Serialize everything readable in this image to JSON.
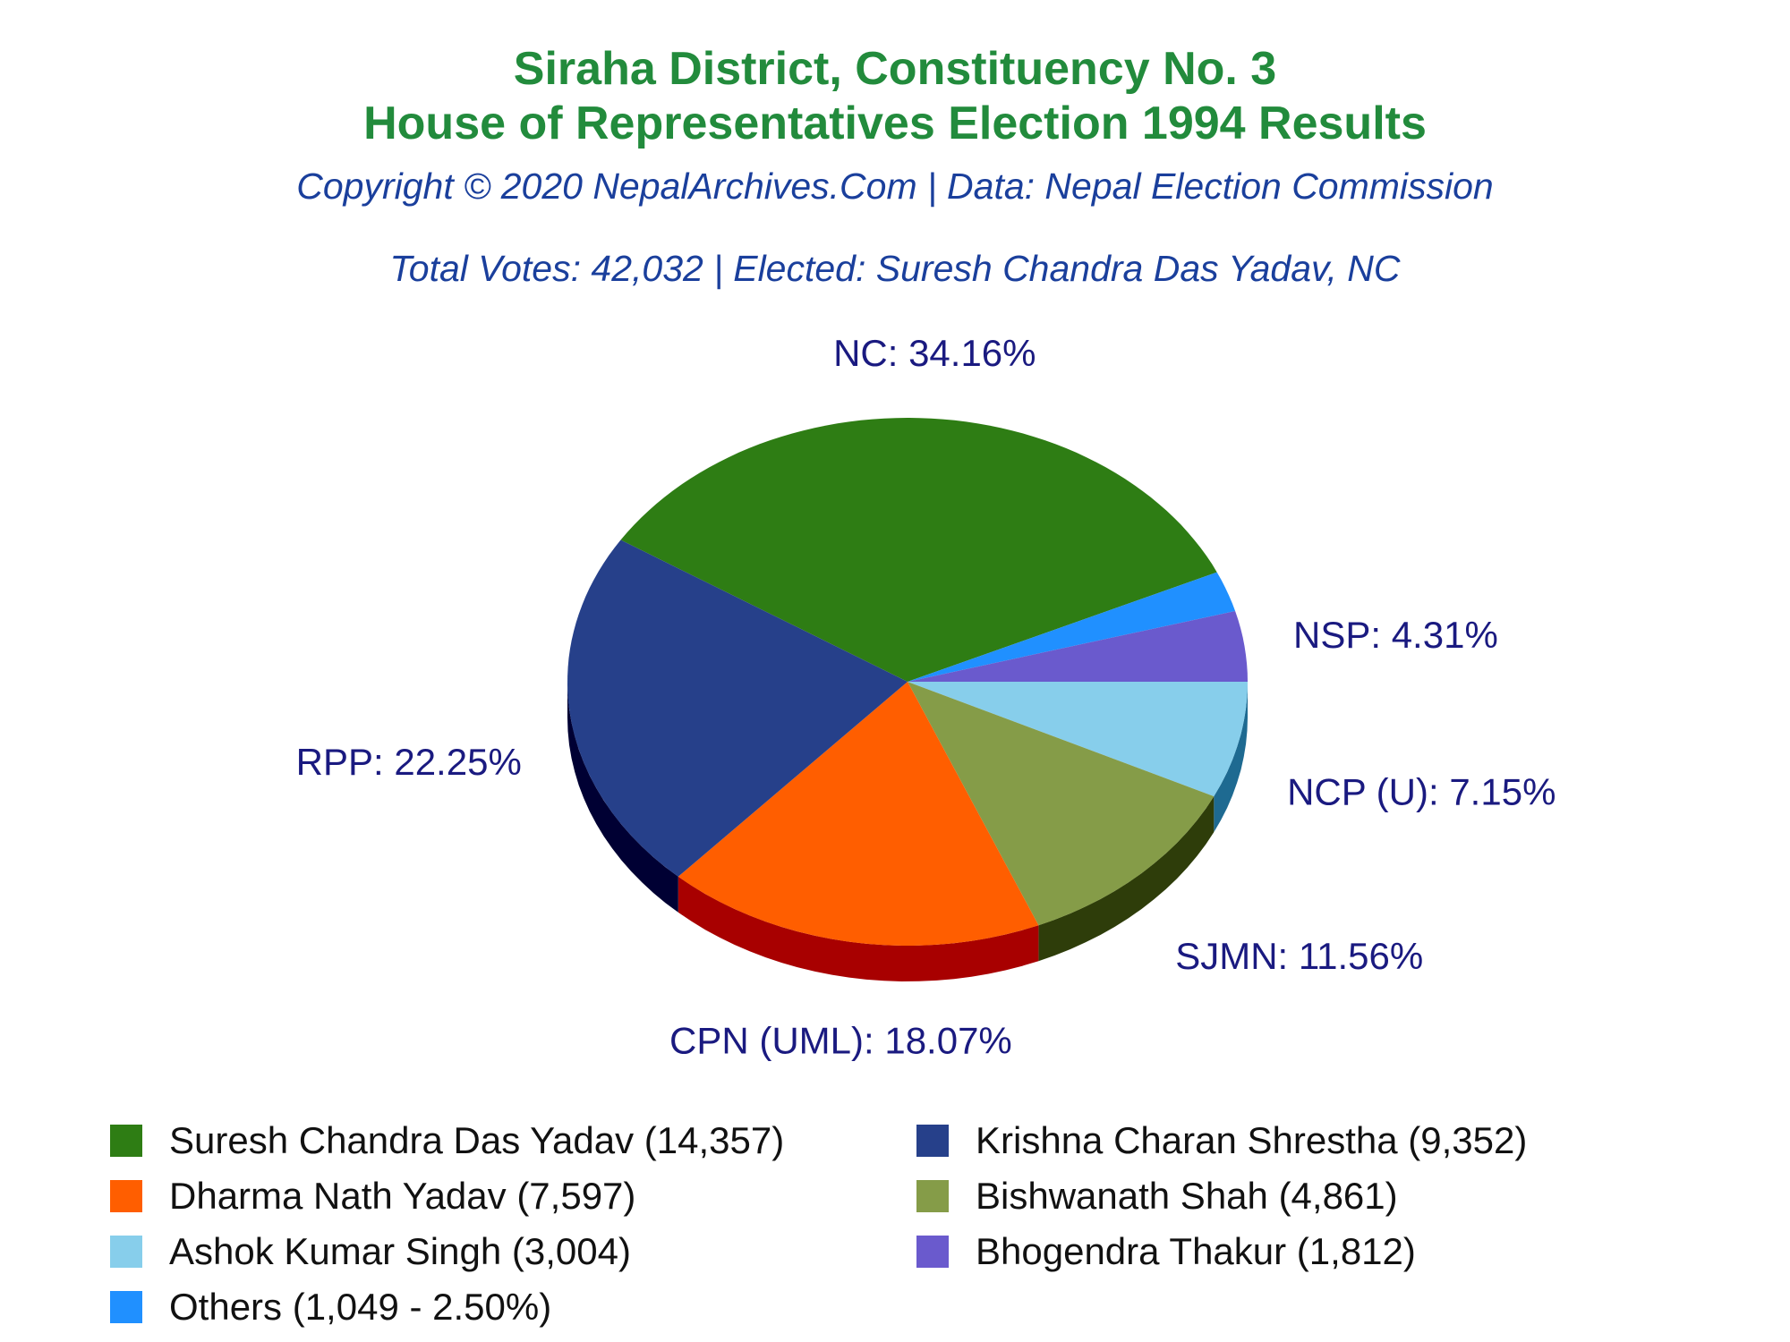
{
  "chart_data": {
    "type": "pie",
    "title": "Siraha District, Constituency No. 3",
    "title_line2": "House of Representatives Election 1994 Results",
    "subtitle": "Copyright © 2020 NepalArchives.Com | Data: Nepal Election Commission",
    "summary": "Total Votes: 42,032 | Elected: Suresh Chandra Das Yadav, NC",
    "slices": [
      {
        "party": "NC",
        "value": 34.16,
        "label": "NC: 34.16%",
        "color": "#2e7d14",
        "side_color": "#1c5a0a"
      },
      {
        "party": "Others",
        "value": 2.5,
        "label": "",
        "color": "#2090ff",
        "side_color": "#1565c0"
      },
      {
        "party": "NSP",
        "value": 4.31,
        "label": "NSP: 4.31%",
        "color": "#6a5acd",
        "side_color": "#3f3590"
      },
      {
        "party": "NCP (U)",
        "value": 7.15,
        "label": "NCP (U): 7.15%",
        "color": "#87ceeb",
        "side_color": "#1e6a91"
      },
      {
        "party": "SJMN",
        "value": 11.56,
        "label": "SJMN: 11.56%",
        "color": "#859c48",
        "side_color": "#2e3d0a"
      },
      {
        "party": "CPN (UML)",
        "value": 18.07,
        "label": "CPN (UML): 18.07%",
        "color": "#ff5e00",
        "side_color": "#a80000"
      },
      {
        "party": "RPP",
        "value": 22.25,
        "label": "RPP: 22.25%",
        "color": "#26408a",
        "side_color": "#000033"
      }
    ],
    "legend": [
      {
        "text": "Suresh Chandra Das Yadav (14,357)",
        "color": "#2e7d14"
      },
      {
        "text": "Krishna Charan Shrestha (9,352)",
        "color": "#26408a"
      },
      {
        "text": "Dharma Nath Yadav (7,597)",
        "color": "#ff5e00"
      },
      {
        "text": "Bishwanath Shah (4,861)",
        "color": "#859c48"
      },
      {
        "text": "Ashok Kumar Singh (3,004)",
        "color": "#87ceeb"
      },
      {
        "text": "Bhogendra Thakur (1,812)",
        "color": "#6a5acd"
      },
      {
        "text": "Others (1,049 - 2.50%)",
        "color": "#2090ff"
      }
    ],
    "label_color": "#1a1a80"
  }
}
